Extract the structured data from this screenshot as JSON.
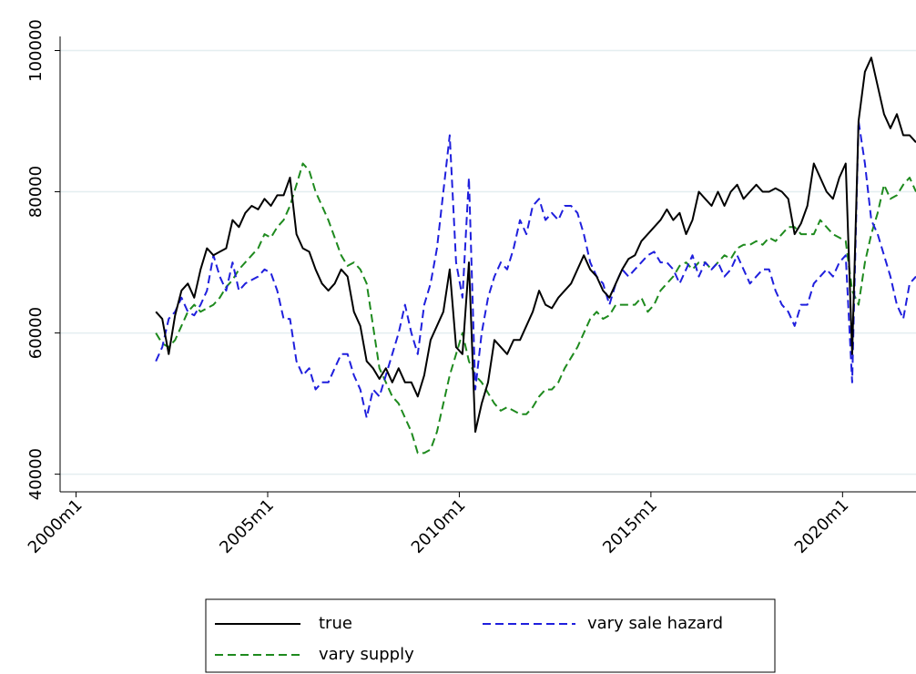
{
  "chart_data": {
    "type": "line",
    "x": [
      505,
      507,
      509,
      511,
      513,
      515,
      517,
      519,
      521,
      523,
      525,
      527,
      529,
      531,
      533,
      535,
      537,
      539,
      541,
      543,
      545,
      547,
      549,
      551,
      553,
      555,
      557,
      559,
      561,
      563,
      565,
      567,
      569,
      571,
      573,
      575,
      577,
      579,
      581,
      583,
      585,
      587,
      589,
      591,
      593,
      595,
      597,
      599,
      601,
      603,
      605,
      607,
      609,
      611,
      613,
      615,
      617,
      619,
      621,
      623,
      625,
      627,
      629,
      631,
      633,
      635,
      637,
      639,
      641,
      643,
      645,
      647,
      649,
      651,
      653,
      655,
      657,
      659,
      661,
      663,
      665,
      667,
      669,
      671,
      673,
      675,
      677,
      679,
      681,
      683,
      685,
      687,
      689,
      691,
      693,
      695,
      697,
      699,
      701,
      703,
      705,
      707,
      709,
      711,
      713,
      715,
      717,
      719,
      721,
      723,
      725,
      727,
      729,
      731,
      733,
      735,
      737,
      739,
      741,
      743
    ],
    "series": [
      {
        "name": "true",
        "color": "#000000",
        "line_style": "solid",
        "values": [
          63000,
          62000,
          57000,
          62500,
          66000,
          67000,
          65000,
          69000,
          72000,
          71000,
          71500,
          72000,
          76000,
          75000,
          77000,
          78000,
          77500,
          79000,
          78000,
          79500,
          79500,
          82000,
          74000,
          72000,
          71500,
          69000,
          67000,
          66000,
          67000,
          69000,
          68000,
          63000,
          61000,
          56000,
          55000,
          53500,
          55000,
          53000,
          55000,
          53000,
          53000,
          51000,
          54000,
          59000,
          61000,
          63000,
          69000,
          58000,
          57000,
          70000,
          46000,
          50000,
          53000,
          59000,
          58000,
          57000,
          59000,
          59000,
          61000,
          63000,
          66000,
          64000,
          63500,
          65000,
          66000,
          67000,
          69000,
          71000,
          69000,
          68000,
          66000,
          65000,
          67000,
          69000,
          70500,
          71000,
          73000,
          74000,
          75000,
          76000,
          77500,
          76000,
          77000,
          74000,
          76000,
          80000,
          79000,
          78000,
          80000,
          78000,
          80000,
          81000,
          79000,
          80000,
          81000,
          80000,
          80000,
          80500,
          80000,
          79000,
          74000,
          75500,
          78000,
          84000,
          82000,
          80000,
          79000,
          82000,
          84000,
          57000,
          90000,
          97000,
          99000,
          95000,
          91000,
          89000,
          91000,
          88000,
          88000,
          87000
        ]
      },
      {
        "name": "vary sale hazard",
        "color": "#1f1fdd",
        "line_style": "dashed",
        "values": [
          56000,
          58000,
          62000,
          63000,
          65000,
          63000,
          62500,
          64000,
          66000,
          71000,
          68000,
          66000,
          70000,
          66000,
          67000,
          67500,
          68000,
          69000,
          68500,
          66000,
          62000,
          62000,
          56000,
          54000,
          55000,
          52000,
          53000,
          53000,
          55000,
          57000,
          57000,
          54000,
          52000,
          48000,
          52000,
          51000,
          54000,
          57000,
          60000,
          64000,
          60000,
          57000,
          64000,
          67000,
          72000,
          80000,
          88000,
          70000,
          65000,
          82000,
          52000,
          60000,
          65000,
          68000,
          70000,
          69000,
          72000,
          76000,
          74000,
          78000,
          79000,
          76000,
          77000,
          76000,
          78000,
          78000,
          77000,
          74000,
          70000,
          68000,
          67000,
          64000,
          67000,
          69000,
          68000,
          69000,
          70000,
          71000,
          71500,
          70000,
          70000,
          69000,
          67000,
          69000,
          71000,
          68000,
          70000,
          69000,
          70000,
          68000,
          69000,
          71000,
          69000,
          67000,
          68000,
          69000,
          69000,
          66000,
          64000,
          63000,
          61000,
          64000,
          64000,
          67000,
          68000,
          69000,
          68000,
          70000,
          71000,
          53000,
          90000,
          84000,
          76000,
          74000,
          71000,
          68000,
          64000,
          62000,
          67000,
          68000
        ]
      },
      {
        "name": "vary supply",
        "color": "#1e8a1e",
        "line_style": "dashed",
        "values": [
          60000,
          58500,
          58000,
          59000,
          61000,
          63000,
          64000,
          63000,
          63500,
          64000,
          65000,
          66500,
          67500,
          69000,
          70000,
          71000,
          72000,
          74000,
          73500,
          75000,
          76000,
          78000,
          81000,
          84000,
          83000,
          80000,
          78000,
          76000,
          73500,
          71000,
          69500,
          70000,
          69000,
          67000,
          61000,
          55000,
          53000,
          51000,
          50000,
          48000,
          46000,
          43000,
          43000,
          43500,
          46000,
          50000,
          54000,
          57000,
          60000,
          56000,
          54000,
          53000,
          51500,
          50000,
          49000,
          49500,
          49000,
          48500,
          48500,
          49500,
          51000,
          52000,
          52000,
          53000,
          55000,
          56500,
          58000,
          60000,
          62000,
          63000,
          62000,
          62500,
          64000,
          64000,
          64000,
          64000,
          65000,
          63000,
          64000,
          66000,
          67000,
          68000,
          69500,
          70000,
          69000,
          70000,
          70000,
          69000,
          70000,
          71000,
          70500,
          72000,
          72500,
          72500,
          73000,
          72500,
          73500,
          73000,
          74000,
          75000,
          75000,
          74000,
          74000,
          74000,
          76000,
          75000,
          74000,
          73500,
          73000,
          66000,
          64000,
          70000,
          74000,
          77000,
          81000,
          79000,
          79500,
          81000,
          82000,
          80000
        ]
      }
    ],
    "xlim": [
      475,
      743
    ],
    "xticks": [
      {
        "value": 480,
        "label": "2000m1"
      },
      {
        "value": 540,
        "label": "2005m1"
      },
      {
        "value": 600,
        "label": "2010m1"
      },
      {
        "value": 660,
        "label": "2015m1"
      },
      {
        "value": 720,
        "label": "2020m1"
      }
    ],
    "ylim": [
      37500,
      102000
    ],
    "yticks": [
      40000,
      60000,
      80000,
      100000
    ],
    "grid": true,
    "legend_position": "bottom"
  }
}
